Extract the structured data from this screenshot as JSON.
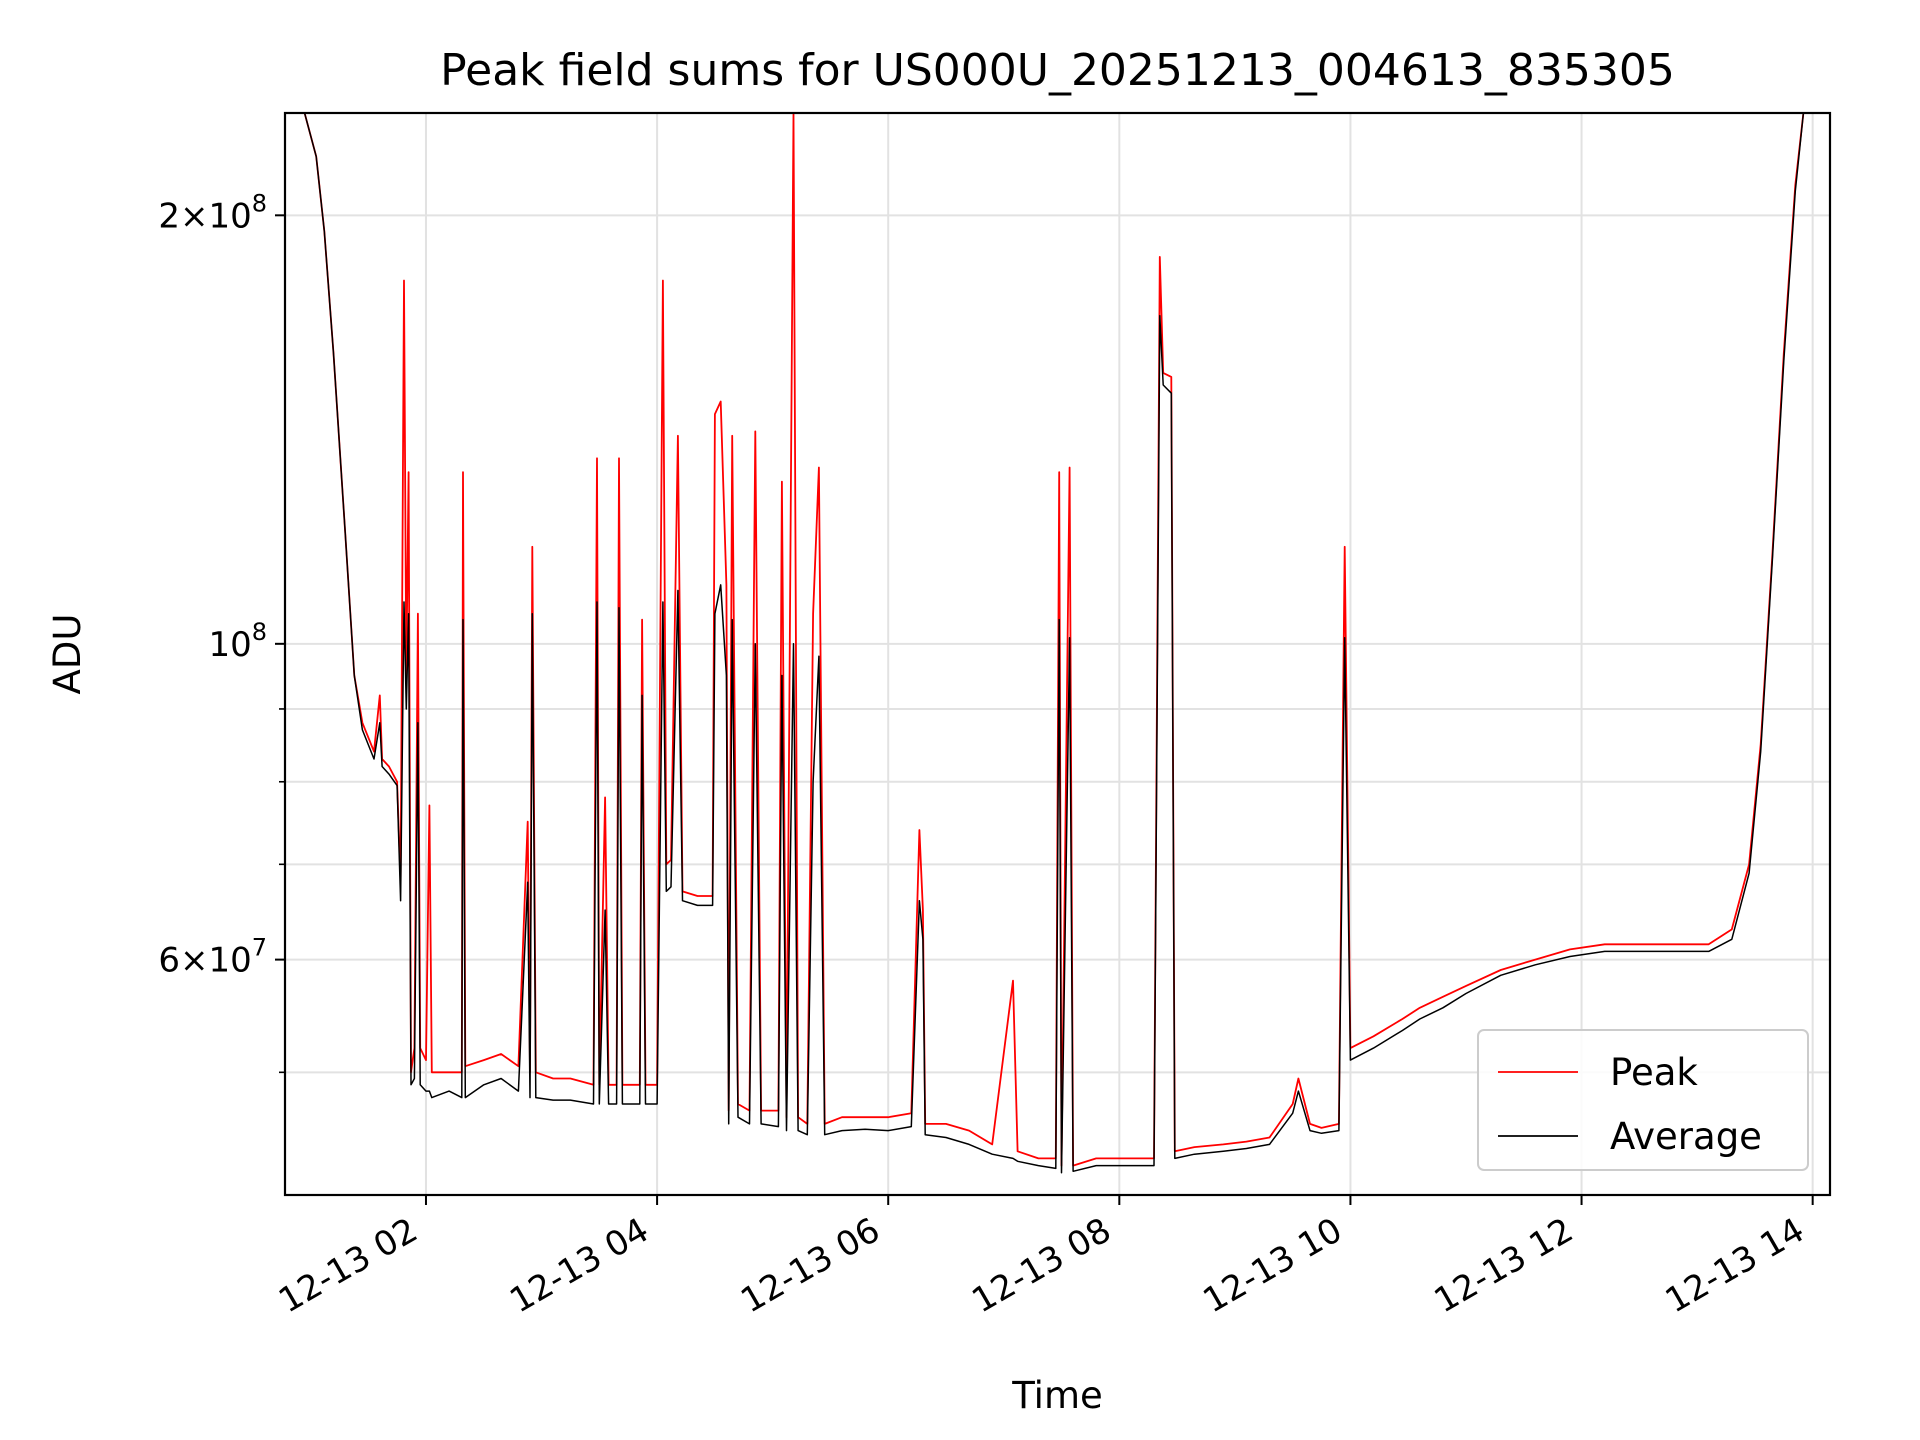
{
  "chart_data": {
    "type": "line",
    "title": "Peak field sums for US000U_20251213_004613_835305",
    "xlabel": "Time",
    "ylabel": "ADU",
    "yscale": "log",
    "grid": true,
    "legend_position": "bottom-right",
    "x_unit": "hours since 12-13 00:00",
    "xlim": [
      0.78,
      14.15
    ],
    "ylim": [
      41000000,
      236000000
    ],
    "x_ticks": [
      {
        "value": 2,
        "label": "12-13 02"
      },
      {
        "value": 4,
        "label": "12-13 04"
      },
      {
        "value": 6,
        "label": "12-13 06"
      },
      {
        "value": 8,
        "label": "12-13 08"
      },
      {
        "value": 10,
        "label": "12-13 10"
      },
      {
        "value": 12,
        "label": "12-13 12"
      },
      {
        "value": 14,
        "label": "12-13 14"
      }
    ],
    "y_major_ticks": [
      {
        "value": 60000000,
        "mantissa": "6",
        "base": "10",
        "exp": "7"
      },
      {
        "value": 100000000,
        "mantissa": "",
        "base": "10",
        "exp": "8"
      },
      {
        "value": 200000000,
        "mantissa": "2",
        "base": "10",
        "exp": "8"
      }
    ],
    "y_minor_ticks": [
      50000000,
      70000000,
      80000000,
      90000000
    ],
    "series": [
      {
        "name": "Peak",
        "color": "#ff0000",
        "points": [
          [
            0.95,
            236000000
          ],
          [
            1.05,
            220000000
          ],
          [
            1.12,
            195000000
          ],
          [
            1.2,
            160000000
          ],
          [
            1.3,
            120000000
          ],
          [
            1.38,
            95000000
          ],
          [
            1.45,
            88000000
          ],
          [
            1.55,
            84000000
          ],
          [
            1.6,
            92000000
          ],
          [
            1.62,
            83000000
          ],
          [
            1.68,
            82000000
          ],
          [
            1.75,
            80000000
          ],
          [
            1.78,
            68000000
          ],
          [
            1.81,
            180000000
          ],
          [
            1.83,
            95000000
          ],
          [
            1.85,
            132000000
          ],
          [
            1.87,
            50000000
          ],
          [
            1.9,
            52000000
          ],
          [
            1.93,
            105000000
          ],
          [
            1.95,
            52000000
          ],
          [
            2.0,
            51000000
          ],
          [
            2.03,
            77000000
          ],
          [
            2.05,
            50000000
          ],
          [
            2.2,
            50000000
          ],
          [
            2.31,
            50000000
          ],
          [
            2.32,
            132000000
          ],
          [
            2.34,
            50500000
          ],
          [
            2.5,
            51000000
          ],
          [
            2.65,
            51500000
          ],
          [
            2.8,
            50500000
          ],
          [
            2.88,
            75000000
          ],
          [
            2.9,
            50000000
          ],
          [
            2.92,
            117000000
          ],
          [
            2.95,
            50000000
          ],
          [
            3.1,
            49500000
          ],
          [
            3.25,
            49500000
          ],
          [
            3.45,
            49000000
          ],
          [
            3.48,
            135000000
          ],
          [
            3.5,
            49000000
          ],
          [
            3.55,
            78000000
          ],
          [
            3.58,
            49000000
          ],
          [
            3.65,
            49000000
          ],
          [
            3.67,
            135000000
          ],
          [
            3.7,
            49000000
          ],
          [
            3.85,
            49000000
          ],
          [
            3.87,
            104000000
          ],
          [
            3.9,
            49000000
          ],
          [
            4.0,
            49000000
          ],
          [
            4.05,
            180000000
          ],
          [
            4.08,
            70000000
          ],
          [
            4.12,
            70500000
          ],
          [
            4.18,
            140000000
          ],
          [
            4.22,
            67000000
          ],
          [
            4.35,
            66500000
          ],
          [
            4.48,
            66500000
          ],
          [
            4.5,
            145000000
          ],
          [
            4.55,
            148000000
          ],
          [
            4.6,
            110000000
          ],
          [
            4.62,
            47000000
          ],
          [
            4.65,
            140000000
          ],
          [
            4.7,
            47500000
          ],
          [
            4.8,
            47000000
          ],
          [
            4.85,
            141000000
          ],
          [
            4.9,
            47000000
          ],
          [
            5.05,
            47000000
          ],
          [
            5.08,
            130000000
          ],
          [
            5.12,
            46500000
          ],
          [
            5.18,
            236000000
          ],
          [
            5.22,
            46500000
          ],
          [
            5.3,
            46000000
          ],
          [
            5.35,
            105000000
          ],
          [
            5.4,
            133000000
          ],
          [
            5.45,
            46000000
          ],
          [
            5.6,
            46500000
          ],
          [
            5.8,
            46500000
          ],
          [
            6.0,
            46500000
          ],
          [
            6.2,
            46800000
          ],
          [
            6.27,
            74000000
          ],
          [
            6.3,
            65000000
          ],
          [
            6.32,
            46000000
          ],
          [
            6.5,
            46000000
          ],
          [
            6.7,
            45500000
          ],
          [
            6.9,
            44500000
          ],
          [
            7.08,
            58000000
          ],
          [
            7.12,
            44000000
          ],
          [
            7.3,
            43500000
          ],
          [
            7.45,
            43500000
          ],
          [
            7.48,
            132000000
          ],
          [
            7.5,
            43000000
          ],
          [
            7.57,
            133000000
          ],
          [
            7.6,
            43000000
          ],
          [
            7.8,
            43500000
          ],
          [
            8.0,
            43500000
          ],
          [
            8.2,
            43500000
          ],
          [
            8.3,
            43500000
          ],
          [
            8.35,
            187000000
          ],
          [
            8.38,
            155000000
          ],
          [
            8.45,
            154000000
          ],
          [
            8.48,
            44000000
          ],
          [
            8.65,
            44300000
          ],
          [
            8.9,
            44500000
          ],
          [
            9.1,
            44700000
          ],
          [
            9.3,
            45000000
          ],
          [
            9.5,
            47500000
          ],
          [
            9.55,
            49500000
          ],
          [
            9.65,
            46000000
          ],
          [
            9.75,
            45700000
          ],
          [
            9.9,
            46000000
          ],
          [
            9.95,
            117000000
          ],
          [
            10.0,
            52000000
          ],
          [
            10.2,
            53000000
          ],
          [
            10.45,
            54500000
          ],
          [
            10.6,
            55500000
          ],
          [
            10.8,
            56500000
          ],
          [
            11.0,
            57500000
          ],
          [
            11.3,
            59000000
          ],
          [
            11.6,
            60000000
          ],
          [
            11.9,
            61000000
          ],
          [
            12.2,
            61500000
          ],
          [
            12.5,
            61500000
          ],
          [
            12.8,
            61500000
          ],
          [
            13.1,
            61500000
          ],
          [
            13.3,
            63000000
          ],
          [
            13.45,
            70000000
          ],
          [
            13.55,
            85000000
          ],
          [
            13.65,
            115000000
          ],
          [
            13.75,
            160000000
          ],
          [
            13.85,
            210000000
          ],
          [
            13.92,
            236000000
          ],
          [
            14.15,
            236000000
          ]
        ]
      },
      {
        "name": "Average",
        "color": "#000000",
        "points": [
          [
            0.95,
            236000000
          ],
          [
            1.05,
            220000000
          ],
          [
            1.12,
            195000000
          ],
          [
            1.2,
            160000000
          ],
          [
            1.3,
            120000000
          ],
          [
            1.38,
            95000000
          ],
          [
            1.45,
            87000000
          ],
          [
            1.55,
            83000000
          ],
          [
            1.6,
            88000000
          ],
          [
            1.62,
            82000000
          ],
          [
            1.68,
            81000000
          ],
          [
            1.75,
            79500000
          ],
          [
            1.78,
            66000000
          ],
          [
            1.81,
            107000000
          ],
          [
            1.83,
            90000000
          ],
          [
            1.85,
            105000000
          ],
          [
            1.87,
            49000000
          ],
          [
            1.9,
            49500000
          ],
          [
            1.93,
            88000000
          ],
          [
            1.95,
            49000000
          ],
          [
            2.0,
            48500000
          ],
          [
            2.03,
            48500000
          ],
          [
            2.05,
            48000000
          ],
          [
            2.2,
            48500000
          ],
          [
            2.31,
            48000000
          ],
          [
            2.32,
            104000000
          ],
          [
            2.34,
            48000000
          ],
          [
            2.5,
            49000000
          ],
          [
            2.65,
            49500000
          ],
          [
            2.8,
            48500000
          ],
          [
            2.88,
            68000000
          ],
          [
            2.9,
            48000000
          ],
          [
            2.92,
            105000000
          ],
          [
            2.95,
            48000000
          ],
          [
            3.1,
            47800000
          ],
          [
            3.25,
            47800000
          ],
          [
            3.45,
            47500000
          ],
          [
            3.48,
            107000000
          ],
          [
            3.5,
            47500000
          ],
          [
            3.55,
            65000000
          ],
          [
            3.58,
            47500000
          ],
          [
            3.65,
            47500000
          ],
          [
            3.67,
            106000000
          ],
          [
            3.7,
            47500000
          ],
          [
            3.85,
            47500000
          ],
          [
            3.87,
            92000000
          ],
          [
            3.9,
            47500000
          ],
          [
            4.0,
            47500000
          ],
          [
            4.05,
            107000000
          ],
          [
            4.08,
            67000000
          ],
          [
            4.12,
            67500000
          ],
          [
            4.18,
            109000000
          ],
          [
            4.22,
            66000000
          ],
          [
            4.35,
            65500000
          ],
          [
            4.48,
            65500000
          ],
          [
            4.5,
            105000000
          ],
          [
            4.55,
            110000000
          ],
          [
            4.6,
            95000000
          ],
          [
            4.62,
            46000000
          ],
          [
            4.65,
            104000000
          ],
          [
            4.7,
            46500000
          ],
          [
            4.8,
            46000000
          ],
          [
            4.85,
            100000000
          ],
          [
            4.9,
            46000000
          ],
          [
            5.05,
            45800000
          ],
          [
            5.08,
            95000000
          ],
          [
            5.12,
            45500000
          ],
          [
            5.18,
            100000000
          ],
          [
            5.22,
            45500000
          ],
          [
            5.3,
            45200000
          ],
          [
            5.35,
            80000000
          ],
          [
            5.4,
            98000000
          ],
          [
            5.45,
            45200000
          ],
          [
            5.6,
            45500000
          ],
          [
            5.8,
            45600000
          ],
          [
            6.0,
            45500000
          ],
          [
            6.2,
            45800000
          ],
          [
            6.27,
            66000000
          ],
          [
            6.3,
            62000000
          ],
          [
            6.32,
            45200000
          ],
          [
            6.5,
            45000000
          ],
          [
            6.7,
            44500000
          ],
          [
            6.9,
            43800000
          ],
          [
            7.08,
            43500000
          ],
          [
            7.12,
            43300000
          ],
          [
            7.3,
            43000000
          ],
          [
            7.45,
            42800000
          ],
          [
            7.48,
            104000000
          ],
          [
            7.5,
            42500000
          ],
          [
            7.57,
            101000000
          ],
          [
            7.6,
            42600000
          ],
          [
            7.8,
            43000000
          ],
          [
            8.0,
            43000000
          ],
          [
            8.2,
            43000000
          ],
          [
            8.3,
            43000000
          ],
          [
            8.35,
            170000000
          ],
          [
            8.38,
            152000000
          ],
          [
            8.45,
            150000000
          ],
          [
            8.48,
            43500000
          ],
          [
            8.65,
            43800000
          ],
          [
            8.9,
            44000000
          ],
          [
            9.1,
            44200000
          ],
          [
            9.3,
            44500000
          ],
          [
            9.5,
            46800000
          ],
          [
            9.55,
            48500000
          ],
          [
            9.65,
            45500000
          ],
          [
            9.75,
            45300000
          ],
          [
            9.9,
            45500000
          ],
          [
            9.95,
            101000000
          ],
          [
            10.0,
            51000000
          ],
          [
            10.2,
            52000000
          ],
          [
            10.45,
            53500000
          ],
          [
            10.6,
            54500000
          ],
          [
            10.8,
            55500000
          ],
          [
            11.0,
            56800000
          ],
          [
            11.3,
            58500000
          ],
          [
            11.6,
            59500000
          ],
          [
            11.9,
            60300000
          ],
          [
            12.2,
            60800000
          ],
          [
            12.5,
            60800000
          ],
          [
            12.8,
            60800000
          ],
          [
            13.1,
            60800000
          ],
          [
            13.3,
            62000000
          ],
          [
            13.45,
            69000000
          ],
          [
            13.55,
            84000000
          ],
          [
            13.65,
            114000000
          ],
          [
            13.75,
            158000000
          ],
          [
            13.85,
            208000000
          ],
          [
            13.92,
            236000000
          ],
          [
            14.15,
            236000000
          ]
        ]
      }
    ]
  }
}
